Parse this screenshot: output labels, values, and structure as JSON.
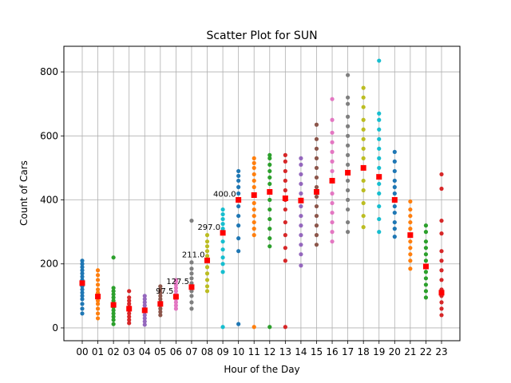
{
  "chart_data": {
    "type": "scatter",
    "title": "Scatter Plot for SUN",
    "xlabel": "Hour of the Day",
    "ylabel": "Count of Cars",
    "categories": [
      "00",
      "01",
      "02",
      "03",
      "04",
      "05",
      "06",
      "07",
      "08",
      "09",
      "10",
      "11",
      "12",
      "13",
      "14",
      "15",
      "16",
      "17",
      "18",
      "19",
      "20",
      "21",
      "22",
      "23"
    ],
    "ylim": [
      -40,
      880
    ],
    "yticks": [
      0,
      200,
      400,
      600,
      800
    ],
    "grid": true,
    "median_color": "#ff0000",
    "colors": [
      "#1f77b4",
      "#ff7f0e",
      "#2ca02c",
      "#d62728",
      "#9467bd",
      "#8c564b",
      "#e377c2",
      "#7f7f7f",
      "#bcbd22",
      "#17becf"
    ],
    "series": [
      {
        "values": [
          45,
          60,
          75,
          90,
          100,
          110,
          120,
          130,
          140,
          150,
          160,
          170,
          180,
          190,
          200,
          210
        ]
      },
      {
        "values": [
          30,
          45,
          60,
          75,
          85,
          95,
          100,
          110,
          120,
          135,
          150,
          165,
          180
        ]
      },
      {
        "values": [
          12,
          25,
          35,
          45,
          55,
          65,
          70,
          75,
          85,
          95,
          105,
          115,
          125,
          220
        ]
      },
      {
        "values": [
          15,
          25,
          35,
          45,
          55,
          60,
          65,
          75,
          85,
          95,
          115
        ]
      },
      {
        "values": [
          10,
          20,
          30,
          40,
          50,
          55,
          60,
          70,
          80,
          90,
          100
        ]
      },
      {
        "values": [
          40,
          50,
          60,
          70,
          75,
          80,
          90,
          100,
          110,
          120,
          130
        ]
      },
      {
        "values": [
          60,
          70,
          80,
          90,
          97.5,
          105,
          115,
          125,
          135,
          145,
          150
        ]
      },
      {
        "values": [
          60,
          80,
          100,
          115,
          127.5,
          140,
          155,
          170,
          185,
          205,
          335
        ]
      },
      {
        "values": [
          115,
          130,
          150,
          170,
          190,
          211,
          225,
          240,
          255,
          270,
          290
        ]
      },
      {
        "values": [
          3,
          175,
          200,
          220,
          245,
          270,
          297,
          310,
          325,
          340,
          355,
          370
        ]
      },
      {
        "values": [
          12,
          240,
          280,
          320,
          350,
          380,
          400,
          420,
          440,
          460,
          475,
          490
        ]
      },
      {
        "values": [
          3,
          290,
          310,
          330,
          350,
          370,
          390,
          415,
          440,
          460,
          480,
          500,
          515,
          530
        ]
      },
      {
        "values": [
          3,
          255,
          280,
          310,
          340,
          370,
          400,
          425,
          450,
          470,
          490,
          510,
          530,
          540
        ]
      },
      {
        "values": [
          3,
          210,
          250,
          290,
          330,
          370,
          400,
          430,
          460,
          490,
          520,
          540
        ]
      },
      {
        "values": [
          195,
          230,
          260,
          290,
          320,
          350,
          380,
          398,
          420,
          450,
          480,
          510,
          530
        ]
      },
      {
        "values": [
          260,
          290,
          320,
          350,
          380,
          410,
          425,
          440,
          470,
          500,
          530,
          560,
          590,
          635
        ]
      },
      {
        "values": [
          270,
          300,
          330,
          360,
          390,
          420,
          460,
          490,
          520,
          550,
          580,
          610,
          650,
          715
        ]
      },
      {
        "values": [
          300,
          330,
          370,
          400,
          430,
          460,
          485,
          510,
          540,
          570,
          600,
          630,
          660,
          700,
          720,
          790
        ]
      },
      {
        "values": [
          315,
          350,
          390,
          430,
          460,
          500,
          530,
          560,
          590,
          620,
          650,
          690,
          720,
          750
        ]
      },
      {
        "values": [
          300,
          340,
          380,
          420,
          450,
          472,
          500,
          530,
          560,
          590,
          620,
          650,
          670,
          835
        ]
      },
      {
        "values": [
          285,
          310,
          330,
          360,
          380,
          400,
          420,
          440,
          460,
          490,
          520,
          550
        ]
      },
      {
        "values": [
          185,
          210,
          230,
          250,
          270,
          290,
          310,
          330,
          350,
          370,
          395
        ]
      },
      {
        "values": [
          95,
          115,
          135,
          155,
          175,
          192,
          210,
          230,
          250,
          270,
          300,
          320
        ]
      },
      {
        "values": [
          40,
          60,
          80,
          100,
          110,
          120,
          150,
          180,
          210,
          240,
          295,
          335,
          435,
          480
        ]
      }
    ],
    "medians": [
      140,
      98,
      72,
      60,
      55,
      75,
      97.5,
      127.5,
      211,
      297,
      400,
      415,
      425,
      405,
      398,
      425,
      460,
      485,
      500,
      472,
      400,
      290,
      192,
      110
    ],
    "annotations": [
      {
        "index": 6,
        "label": "97.5"
      },
      {
        "index": 7,
        "label": "127.5"
      },
      {
        "index": 8,
        "label": "211.0"
      },
      {
        "index": 9,
        "label": "297.0"
      },
      {
        "index": 10,
        "label": "400.0"
      }
    ]
  }
}
